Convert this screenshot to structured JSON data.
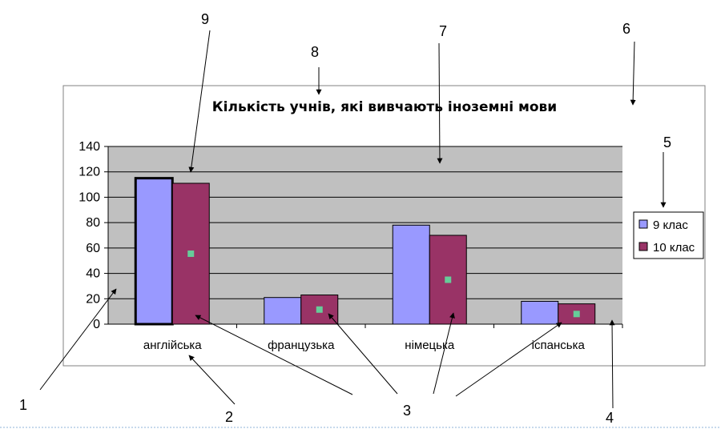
{
  "colors": {
    "series_9": "#9999ff",
    "series_10": "#993366",
    "plot_bg": "#c0c0c0",
    "marker": "#66cc99",
    "bottom_rule": "#8fb3d9"
  },
  "chart_data": {
    "type": "bar",
    "title": "Кількість учнів, які вивчають іноземні мови",
    "xlabel": "",
    "ylabel": "",
    "categories": [
      "англійська",
      "французька",
      "німецька",
      "іспанська"
    ],
    "series": [
      {
        "name": "9 клас",
        "values": [
          115,
          21,
          78,
          18
        ]
      },
      {
        "name": "10 клас",
        "values": [
          111,
          23,
          70,
          16
        ]
      }
    ],
    "ylim": [
      0,
      140
    ],
    "yticks": [
      "0",
      "20",
      "40",
      "60",
      "80",
      "100",
      "120",
      "140"
    ],
    "grid": true,
    "legend": "right"
  },
  "callouts": [
    "1",
    "2",
    "3",
    "4",
    "5",
    "6",
    "7",
    "8",
    "9"
  ]
}
